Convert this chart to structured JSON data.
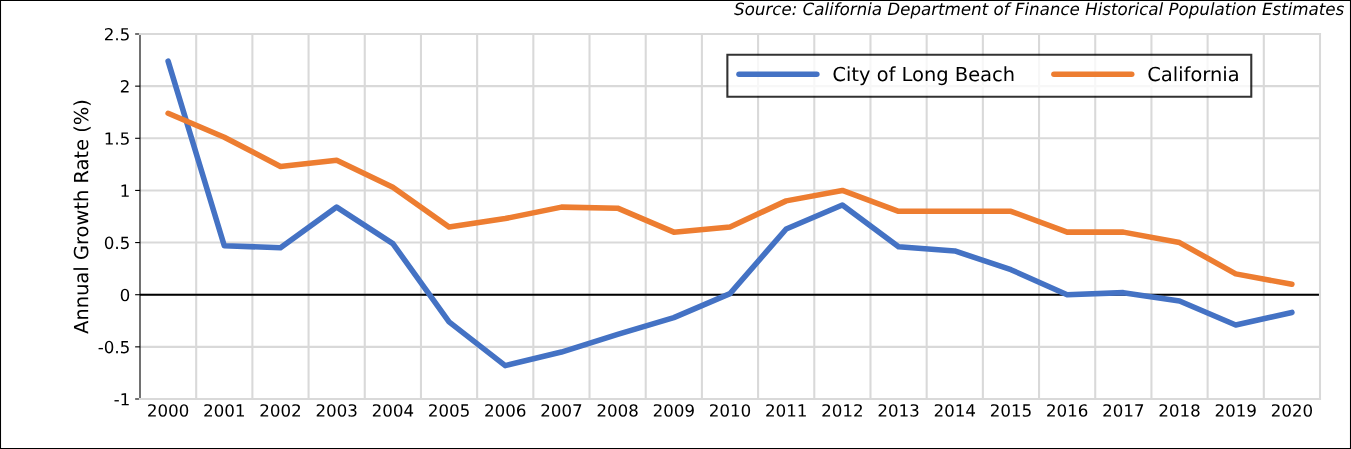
{
  "chart_data": {
    "type": "line",
    "ylabel": "Annual Growth Rate (%)",
    "annotations": [
      "Source: California Department of Finance Historical Population Estimates"
    ],
    "categories": [
      "2000",
      "2001",
      "2002",
      "2003",
      "2004",
      "2005",
      "2006",
      "2007",
      "2008",
      "2009",
      "2010",
      "2011",
      "2012",
      "2013",
      "2014",
      "2015",
      "2016",
      "2017",
      "2018",
      "2019",
      "2020"
    ],
    "series": [
      {
        "name": "City of Long Beach",
        "color": "#4472c4",
        "values": [
          2.24,
          0.47,
          0.45,
          0.84,
          0.49,
          -0.26,
          -0.68,
          -0.55,
          -0.38,
          -0.22,
          0.01,
          0.63,
          0.86,
          0.46,
          0.42,
          0.24,
          0.0,
          0.02,
          -0.06,
          -0.29,
          -0.17
        ]
      },
      {
        "name": "California",
        "color": "#ed7d31",
        "values": [
          1.74,
          1.51,
          1.23,
          1.29,
          1.03,
          0.65,
          0.73,
          0.84,
          0.83,
          0.6,
          0.65,
          0.9,
          1.0,
          0.8,
          0.8,
          0.8,
          0.6,
          0.6,
          0.5,
          0.2,
          0.1
        ]
      }
    ],
    "ylim": [
      -1,
      2.5
    ],
    "yticks": [
      2.5,
      2,
      1.5,
      1,
      0.5,
      0,
      -0.5,
      -1
    ],
    "ref_lines": [
      {
        "axis": "y",
        "value": 0,
        "color": "#000000"
      }
    ],
    "grid": true,
    "legend": "top right",
    "marker": "none",
    "line_style": "solid"
  }
}
